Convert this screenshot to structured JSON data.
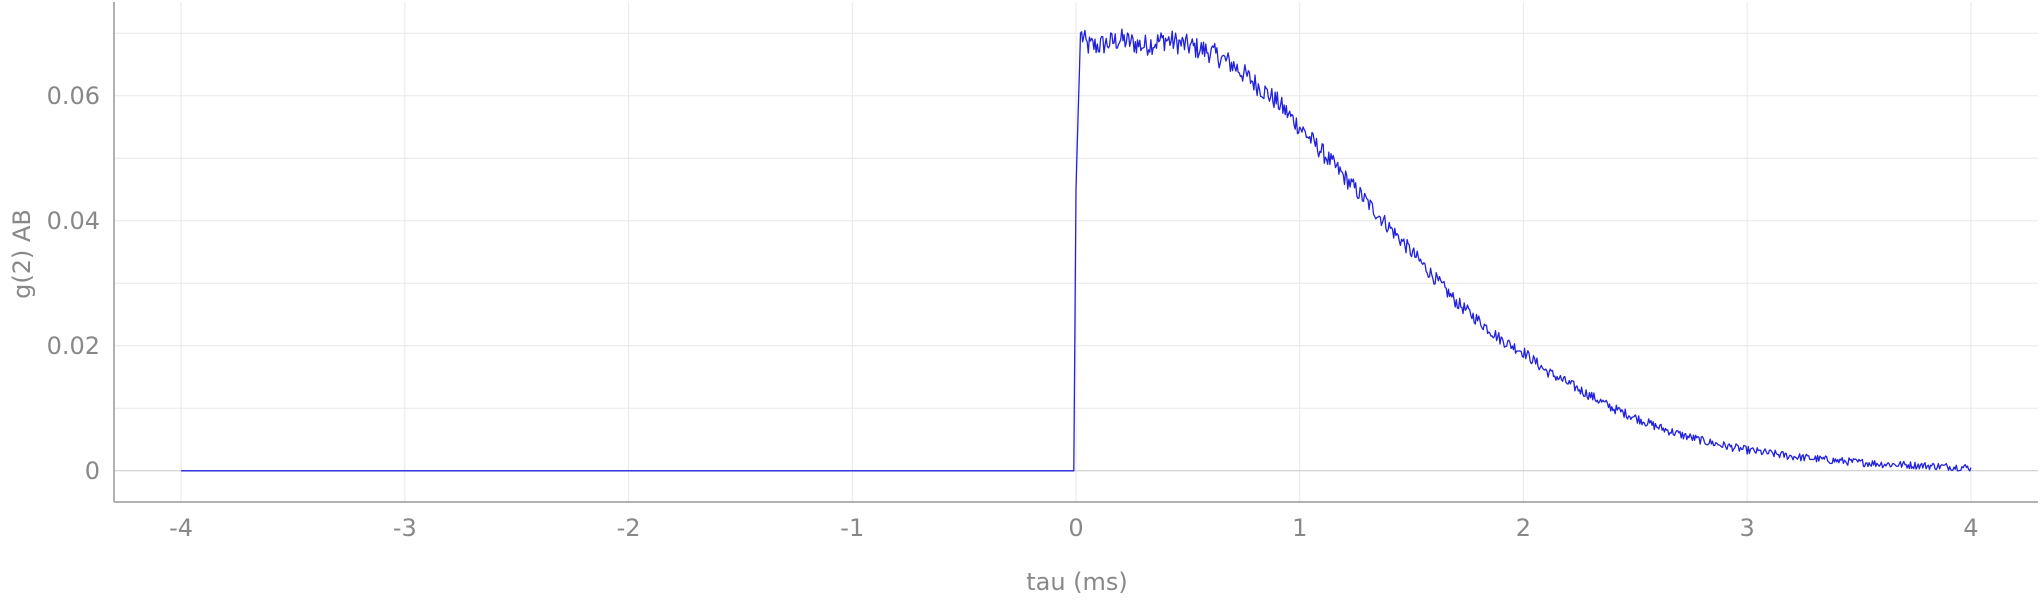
{
  "chart_data": {
    "type": "line",
    "title": "",
    "xlabel": "tau (ms)",
    "ylabel": "g(2) AB",
    "xlim": [
      -4.3,
      4.3
    ],
    "ylim": [
      -0.005,
      0.075
    ],
    "xticks": [
      -4,
      -3,
      -2,
      -1,
      0,
      1,
      2,
      3,
      4
    ],
    "xtick_labels": [
      "-4",
      "-3",
      "-2",
      "-1",
      "0",
      "1",
      "2",
      "3",
      "4"
    ],
    "yticks": [
      0,
      0.02,
      0.04,
      0.06
    ],
    "ytick_labels": [
      "0",
      "0.02",
      "0.04",
      "0.06"
    ],
    "grid": true,
    "legend": "none",
    "series": [
      {
        "color": "#2222dd",
        "x": [
          -4,
          -3,
          -2,
          -1,
          -0.01,
          0.0,
          0.02,
          0.05,
          0.1,
          0.2,
          0.3,
          0.4,
          0.5,
          0.6,
          0.7,
          0.8,
          0.9,
          1.0,
          1.1,
          1.2,
          1.3,
          1.4,
          1.5,
          1.6,
          1.7,
          1.8,
          1.9,
          2.0,
          2.1,
          2.2,
          2.3,
          2.4,
          2.5,
          2.6,
          2.7,
          2.8,
          2.9,
          3.0,
          3.2,
          3.4,
          3.6,
          3.8,
          4.0
        ],
        "y": [
          0,
          0,
          0,
          0,
          0,
          0.045,
          0.07,
          0.068,
          0.068,
          0.069,
          0.068,
          0.069,
          0.068,
          0.067,
          0.065,
          0.062,
          0.059,
          0.055,
          0.051,
          0.047,
          0.043,
          0.039,
          0.035,
          0.031,
          0.027,
          0.024,
          0.021,
          0.019,
          0.016,
          0.014,
          0.012,
          0.01,
          0.0085,
          0.007,
          0.0058,
          0.0048,
          0.004,
          0.0033,
          0.0023,
          0.0016,
          0.0011,
          0.0008,
          0.0005
        ]
      }
    ]
  }
}
